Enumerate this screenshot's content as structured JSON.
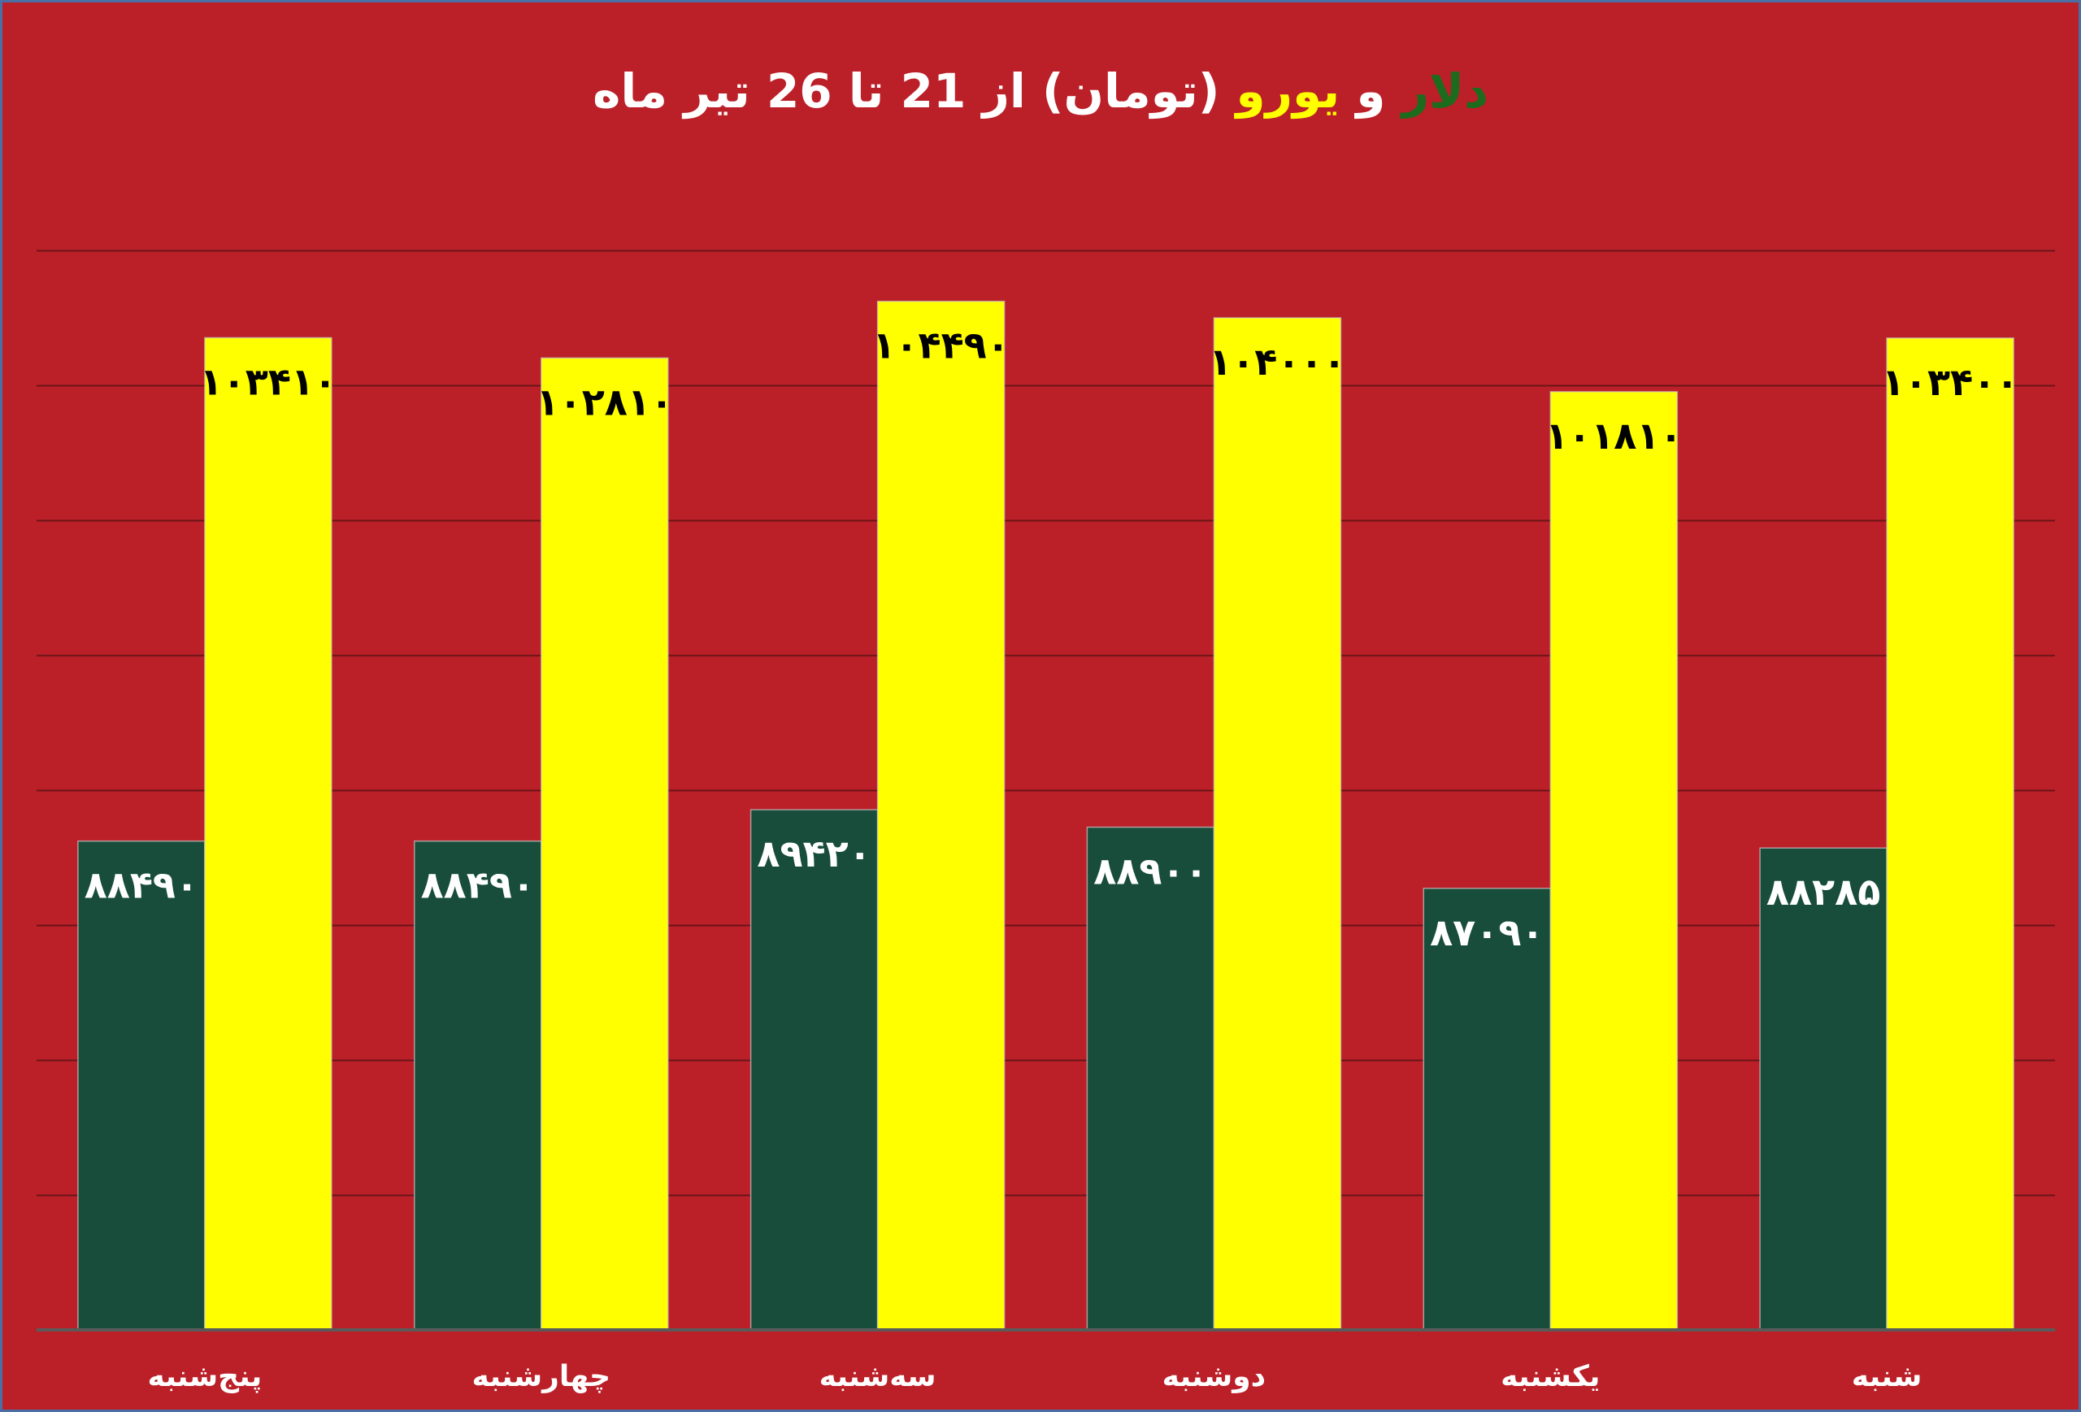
{
  "chart_data": {
    "type": "bar",
    "title": {
      "parts": [
        {
          "text": "دلار",
          "color": "#1d6b1d"
        },
        {
          "text": " و ",
          "color": "#ffffff"
        },
        {
          "text": "یورو",
          "color": "#ffff00"
        },
        {
          "text": " (تومان) از 21 تا 26 تیر ماه",
          "color": "#ffffff"
        }
      ]
    },
    "categories": [
      "شنبه",
      "یکشنبه",
      "دوشنبه",
      "سه‌شنبه",
      "چهارشنبه",
      "پنج‌شنبه"
    ],
    "series": [
      {
        "key": "dollar",
        "color": "#174d3a",
        "label_color": "#ffffff",
        "values": [
          88285,
          87090,
          88900,
          89420,
          88490,
          88490
        ],
        "labels": [
          "۸۸۲۸۵",
          "۸۷۰۹۰",
          "۸۸۹۰۰",
          "۸۹۴۲۰",
          "۸۸۴۹۰",
          "۸۸۴۹۰"
        ]
      },
      {
        "key": "euro",
        "color": "#ffff00",
        "label_color": "#000000",
        "values": [
          103400,
          101810,
          104000,
          104490,
          102810,
          103410
        ],
        "labels": [
          "۱۰۳۴۰۰",
          "۱۰۱۸۱۰",
          "۱۰۴۰۰۰",
          "۱۰۴۴۹۰",
          "۱۰۲۸۱۰",
          "۱۰۳۴۱۰"
        ]
      }
    ],
    "category_order": "right-to-left",
    "ylim": [
      74000,
      108000
    ],
    "gridlines": [
      78000,
      82000,
      86000,
      90000,
      94000,
      98000,
      102000,
      106000
    ],
    "grid": true,
    "legend": "none",
    "background": "#bb2029"
  }
}
